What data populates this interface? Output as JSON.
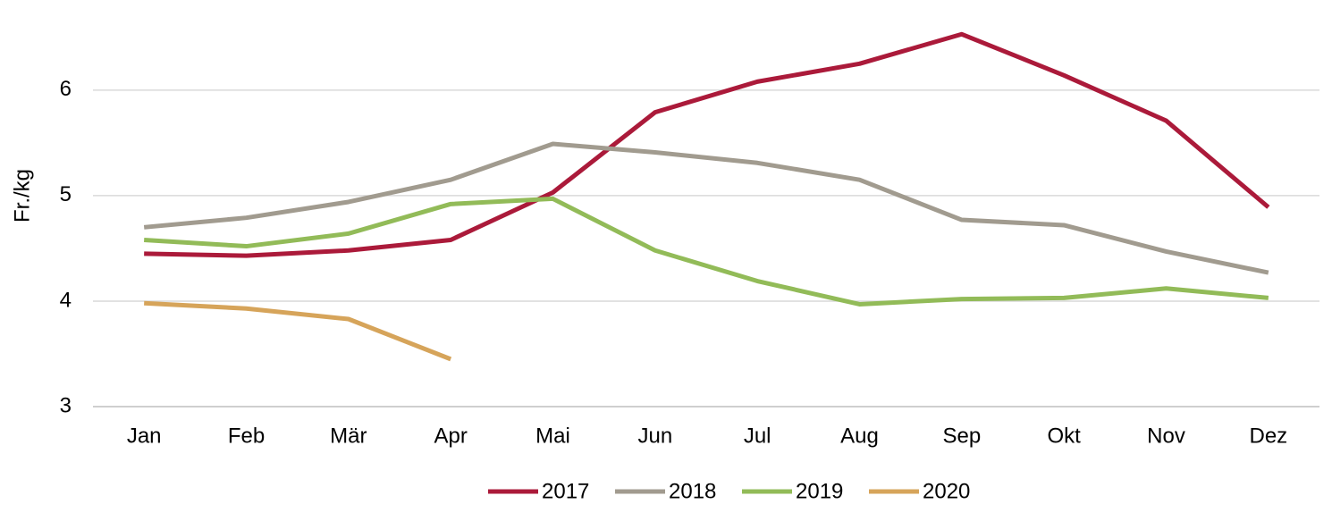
{
  "chart_data": {
    "type": "line",
    "y_label": "Fr./kg",
    "categories": [
      "Jan",
      "Feb",
      "Mär",
      "Apr",
      "Mai",
      "Jun",
      "Jul",
      "Aug",
      "Sep",
      "Okt",
      "Nov",
      "Dez"
    ],
    "series": [
      {
        "name": "2017",
        "color": "#ab1a3a",
        "values": [
          4.45,
          4.43,
          4.48,
          4.58,
          5.03,
          5.79,
          6.08,
          6.25,
          6.53,
          6.14,
          5.71,
          4.89
        ]
      },
      {
        "name": "2018",
        "color": "#a19b8f",
        "values": [
          4.7,
          4.79,
          4.94,
          5.15,
          5.49,
          5.41,
          5.31,
          5.15,
          4.77,
          4.72,
          4.47,
          4.27
        ]
      },
      {
        "name": "2019",
        "color": "#92bb58",
        "values": [
          4.58,
          4.52,
          4.64,
          4.92,
          4.97,
          4.48,
          4.19,
          3.97,
          4.02,
          4.03,
          4.12,
          4.03
        ]
      },
      {
        "name": "2020",
        "color": "#d6a45a",
        "values": [
          3.98,
          3.93,
          3.83,
          3.45,
          null,
          null,
          null,
          null,
          null,
          null,
          null,
          null
        ]
      }
    ],
    "ylim": [
      3,
      6.6
    ],
    "yticks": [
      3,
      4,
      5,
      6
    ],
    "grid": true,
    "legend": "bottom"
  }
}
